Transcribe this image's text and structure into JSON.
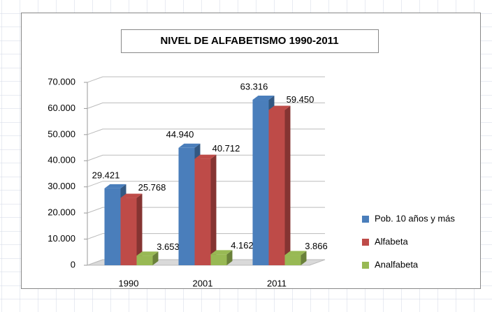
{
  "chart_data": {
    "type": "bar",
    "title": "NIVEL DE ALFABETISMO 1990-2011",
    "categories": [
      "1990",
      "2001",
      "2011"
    ],
    "series": [
      {
        "name": "Pob. 10 años y más",
        "color": "#4a7ebb",
        "values": [
          29421,
          44940,
          63316
        ],
        "value_labels": [
          "29.421",
          "44.940",
          "63.316"
        ]
      },
      {
        "name": "Alfabeta",
        "color": "#be4b48",
        "values": [
          25768,
          40712,
          59450
        ],
        "value_labels": [
          "25.768",
          "40.712",
          "59.450"
        ]
      },
      {
        "name": "Analfabeta",
        "color": "#98b954",
        "values": [
          3653,
          4162,
          3866
        ],
        "value_labels": [
          "3.653",
          "4.162",
          "3.866"
        ]
      }
    ],
    "ylim": [
      0,
      70000
    ],
    "yticks": [
      0,
      {
        "value": 10000,
        "label": "10.000"
      },
      {
        "value": 20000,
        "label": "20.000"
      },
      {
        "value": 30000,
        "label": "30.000"
      },
      {
        "value": 40000,
        "label": "40.000"
      },
      {
        "value": 50000,
        "label": "50.000"
      },
      {
        "value": 60000,
        "label": "60.000"
      },
      {
        "value": 70000,
        "label": "70.000"
      }
    ],
    "grid": true,
    "legend": "right"
  }
}
